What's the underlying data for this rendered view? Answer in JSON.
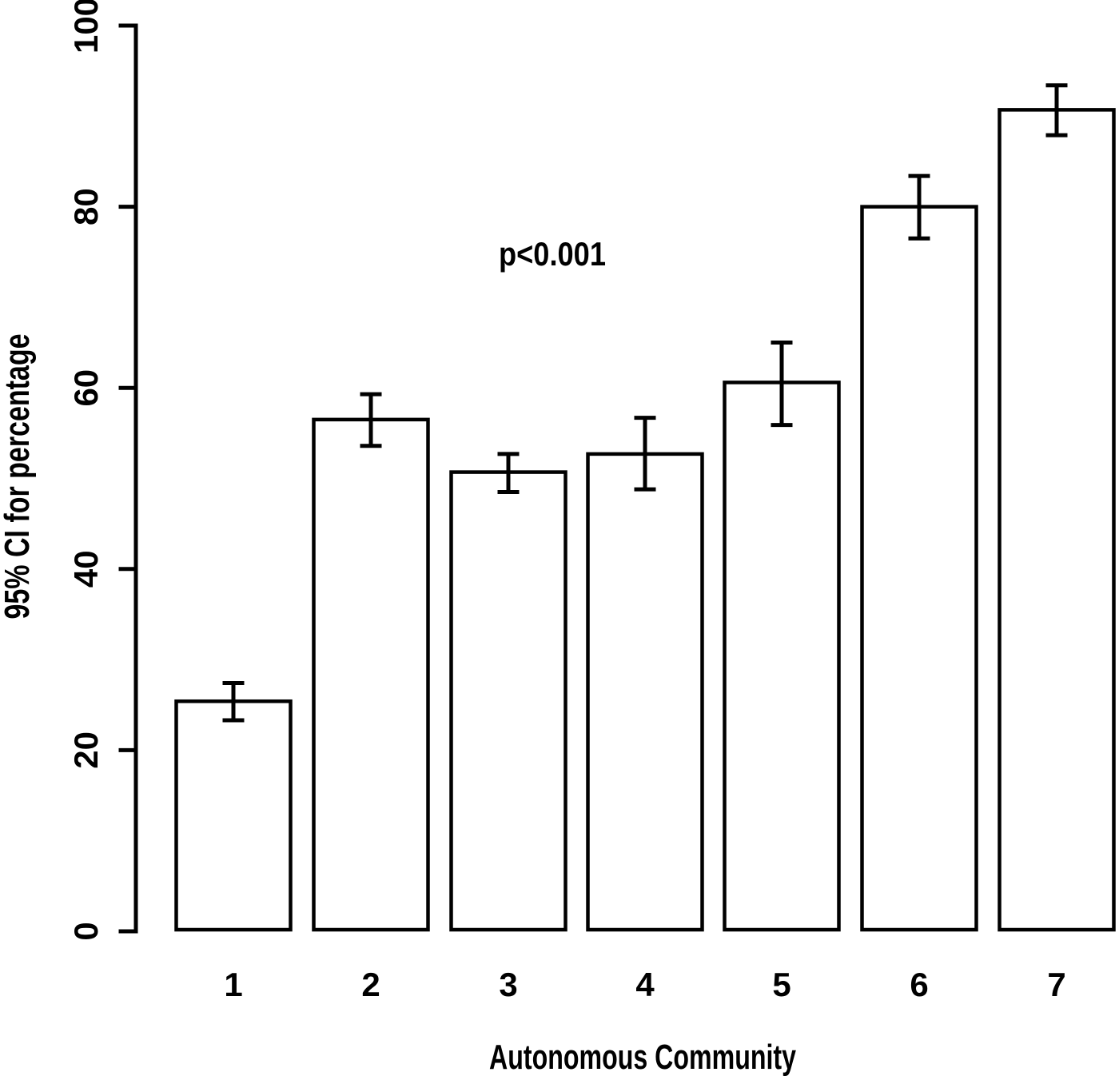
{
  "figure": {
    "background_color": "#ffffff",
    "ink_color": "#000000"
  },
  "chart_data": {
    "type": "bar",
    "title": "",
    "xlabel": "Autonomous Community",
    "ylabel": "95% CI for percentage",
    "annotation": "p<0.001",
    "categories": [
      "1",
      "2",
      "3",
      "4",
      "5",
      "6",
      "7"
    ],
    "values": [
      25.4,
      56.5,
      50.7,
      52.7,
      60.6,
      80.0,
      90.7
    ],
    "error_bars": {
      "kind": "95% confidence interval",
      "low": [
        23.3,
        53.6,
        48.5,
        48.8,
        55.9,
        76.5,
        87.9
      ],
      "high": [
        27.4,
        59.3,
        52.7,
        56.7,
        65.0,
        83.4,
        93.4
      ]
    },
    "ylim": [
      0,
      100
    ],
    "yticks": [
      0,
      20,
      40,
      60,
      80,
      100
    ],
    "grid": false,
    "legend": null,
    "bar_fill": "#ffffff",
    "bar_border": "#000000"
  }
}
